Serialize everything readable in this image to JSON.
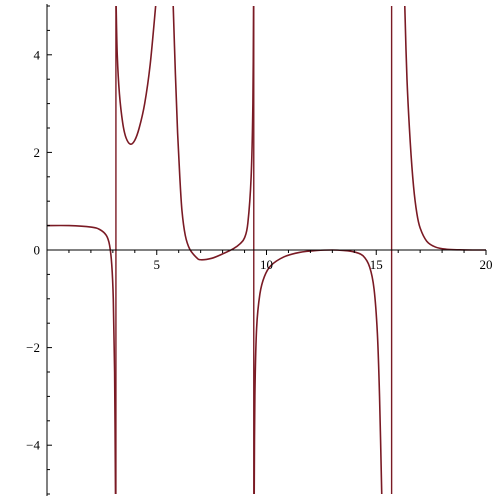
{
  "chart_data": {
    "type": "line",
    "title": "",
    "xlabel": "",
    "ylabel": "",
    "xlim": [
      0,
      20
    ],
    "ylim": [
      -5,
      5
    ],
    "grid": false,
    "legend": "none",
    "line_color": "#7a1a24",
    "x_ticks": [
      {
        "value": 5,
        "label": "5"
      },
      {
        "value": 10,
        "label": "10"
      },
      {
        "value": 15,
        "label": "15"
      },
      {
        "value": 20,
        "label": "20"
      }
    ],
    "y_ticks": [
      {
        "value": -4,
        "label": "−4"
      },
      {
        "value": -2,
        "label": "−2"
      },
      {
        "value": 0,
        "label": "0"
      },
      {
        "value": 2,
        "label": "2"
      },
      {
        "value": 4,
        "label": "4"
      }
    ],
    "vertical_asymptotes": [
      3.14,
      9.42,
      15.7
    ],
    "series": [
      {
        "points": [
          [
            0,
            0.5
          ],
          [
            1,
            0.5
          ],
          [
            2,
            0.47
          ],
          [
            2.4,
            0.42
          ],
          [
            2.7,
            0.3
          ],
          [
            2.85,
            0.1
          ],
          [
            2.95,
            -0.3
          ],
          [
            3.02,
            -1.0
          ],
          [
            3.08,
            -2.5
          ],
          [
            3.12,
            -5
          ]
        ]
      },
      {
        "points": [
          [
            3.15,
            5
          ],
          [
            3.2,
            4.0
          ],
          [
            3.3,
            3.2
          ],
          [
            3.45,
            2.6
          ],
          [
            3.6,
            2.3
          ],
          [
            3.8,
            2.17
          ],
          [
            4.0,
            2.25
          ],
          [
            4.2,
            2.5
          ],
          [
            4.45,
            3.0
          ],
          [
            4.7,
            3.8
          ],
          [
            4.95,
            5
          ]
        ]
      },
      {
        "points": [
          [
            5.75,
            5
          ],
          [
            5.85,
            3.6
          ],
          [
            5.95,
            2.4
          ],
          [
            6.05,
            1.5
          ],
          [
            6.15,
            0.8
          ],
          [
            6.3,
            0.3
          ],
          [
            6.5,
            0.02
          ],
          [
            6.8,
            -0.15
          ],
          [
            7.0,
            -0.2
          ],
          [
            7.5,
            -0.17
          ],
          [
            8.0,
            -0.08
          ],
          [
            8.5,
            0.03
          ],
          [
            8.8,
            0.13
          ],
          [
            9.0,
            0.25
          ],
          [
            9.15,
            0.55
          ],
          [
            9.3,
            1.5
          ],
          [
            9.38,
            3.0
          ],
          [
            9.41,
            5
          ]
        ]
      },
      {
        "points": [
          [
            9.44,
            -5
          ],
          [
            9.47,
            -3.0
          ],
          [
            9.55,
            -1.6
          ],
          [
            9.7,
            -0.9
          ],
          [
            9.9,
            -0.55
          ],
          [
            10.2,
            -0.32
          ],
          [
            10.8,
            -0.14
          ],
          [
            11.5,
            -0.05
          ],
          [
            12.3,
            -0.01
          ],
          [
            13.0,
            0.0
          ],
          [
            13.5,
            -0.01
          ],
          [
            14.0,
            -0.04
          ],
          [
            14.4,
            -0.12
          ],
          [
            14.7,
            -0.35
          ],
          [
            14.9,
            -0.8
          ],
          [
            15.05,
            -1.7
          ],
          [
            15.15,
            -3.0
          ],
          [
            15.25,
            -5
          ]
        ]
      },
      {
        "points": [
          [
            16.3,
            5
          ],
          [
            16.4,
            3.5
          ],
          [
            16.55,
            2.2
          ],
          [
            16.7,
            1.3
          ],
          [
            16.85,
            0.75
          ],
          [
            17.0,
            0.45
          ],
          [
            17.3,
            0.18
          ],
          [
            17.7,
            0.06
          ],
          [
            18.2,
            0.015
          ],
          [
            18.8,
            0.003
          ],
          [
            19.5,
            0.0
          ],
          [
            20,
            0.0
          ]
        ]
      }
    ]
  }
}
